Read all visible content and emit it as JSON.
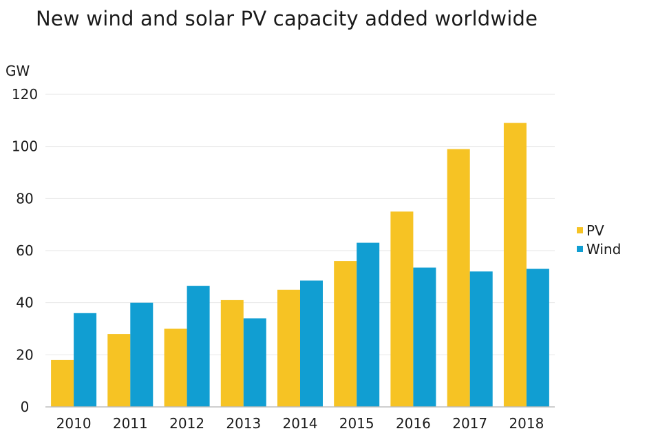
{
  "chart_data": {
    "type": "bar",
    "title": "New wind and solar PV capacity added worldwide",
    "ylabel": "GW",
    "xlabel": "",
    "categories": [
      "2010",
      "2011",
      "2012",
      "2013",
      "2014",
      "2015",
      "2016",
      "2017",
      "2018"
    ],
    "series": [
      {
        "name": "PV",
        "color": "#f6c324",
        "values": [
          18,
          28,
          30,
          41,
          45,
          56,
          75,
          99,
          109
        ]
      },
      {
        "name": "Wind",
        "color": "#119ed2",
        "values": [
          36,
          40,
          46.5,
          34,
          48.5,
          63,
          53.5,
          52,
          53
        ]
      }
    ],
    "ylim": [
      0,
      120
    ],
    "yticks": [
      "0",
      "20",
      "40",
      "60",
      "80",
      "100",
      "120"
    ],
    "grid": true,
    "legend_position": "right"
  }
}
